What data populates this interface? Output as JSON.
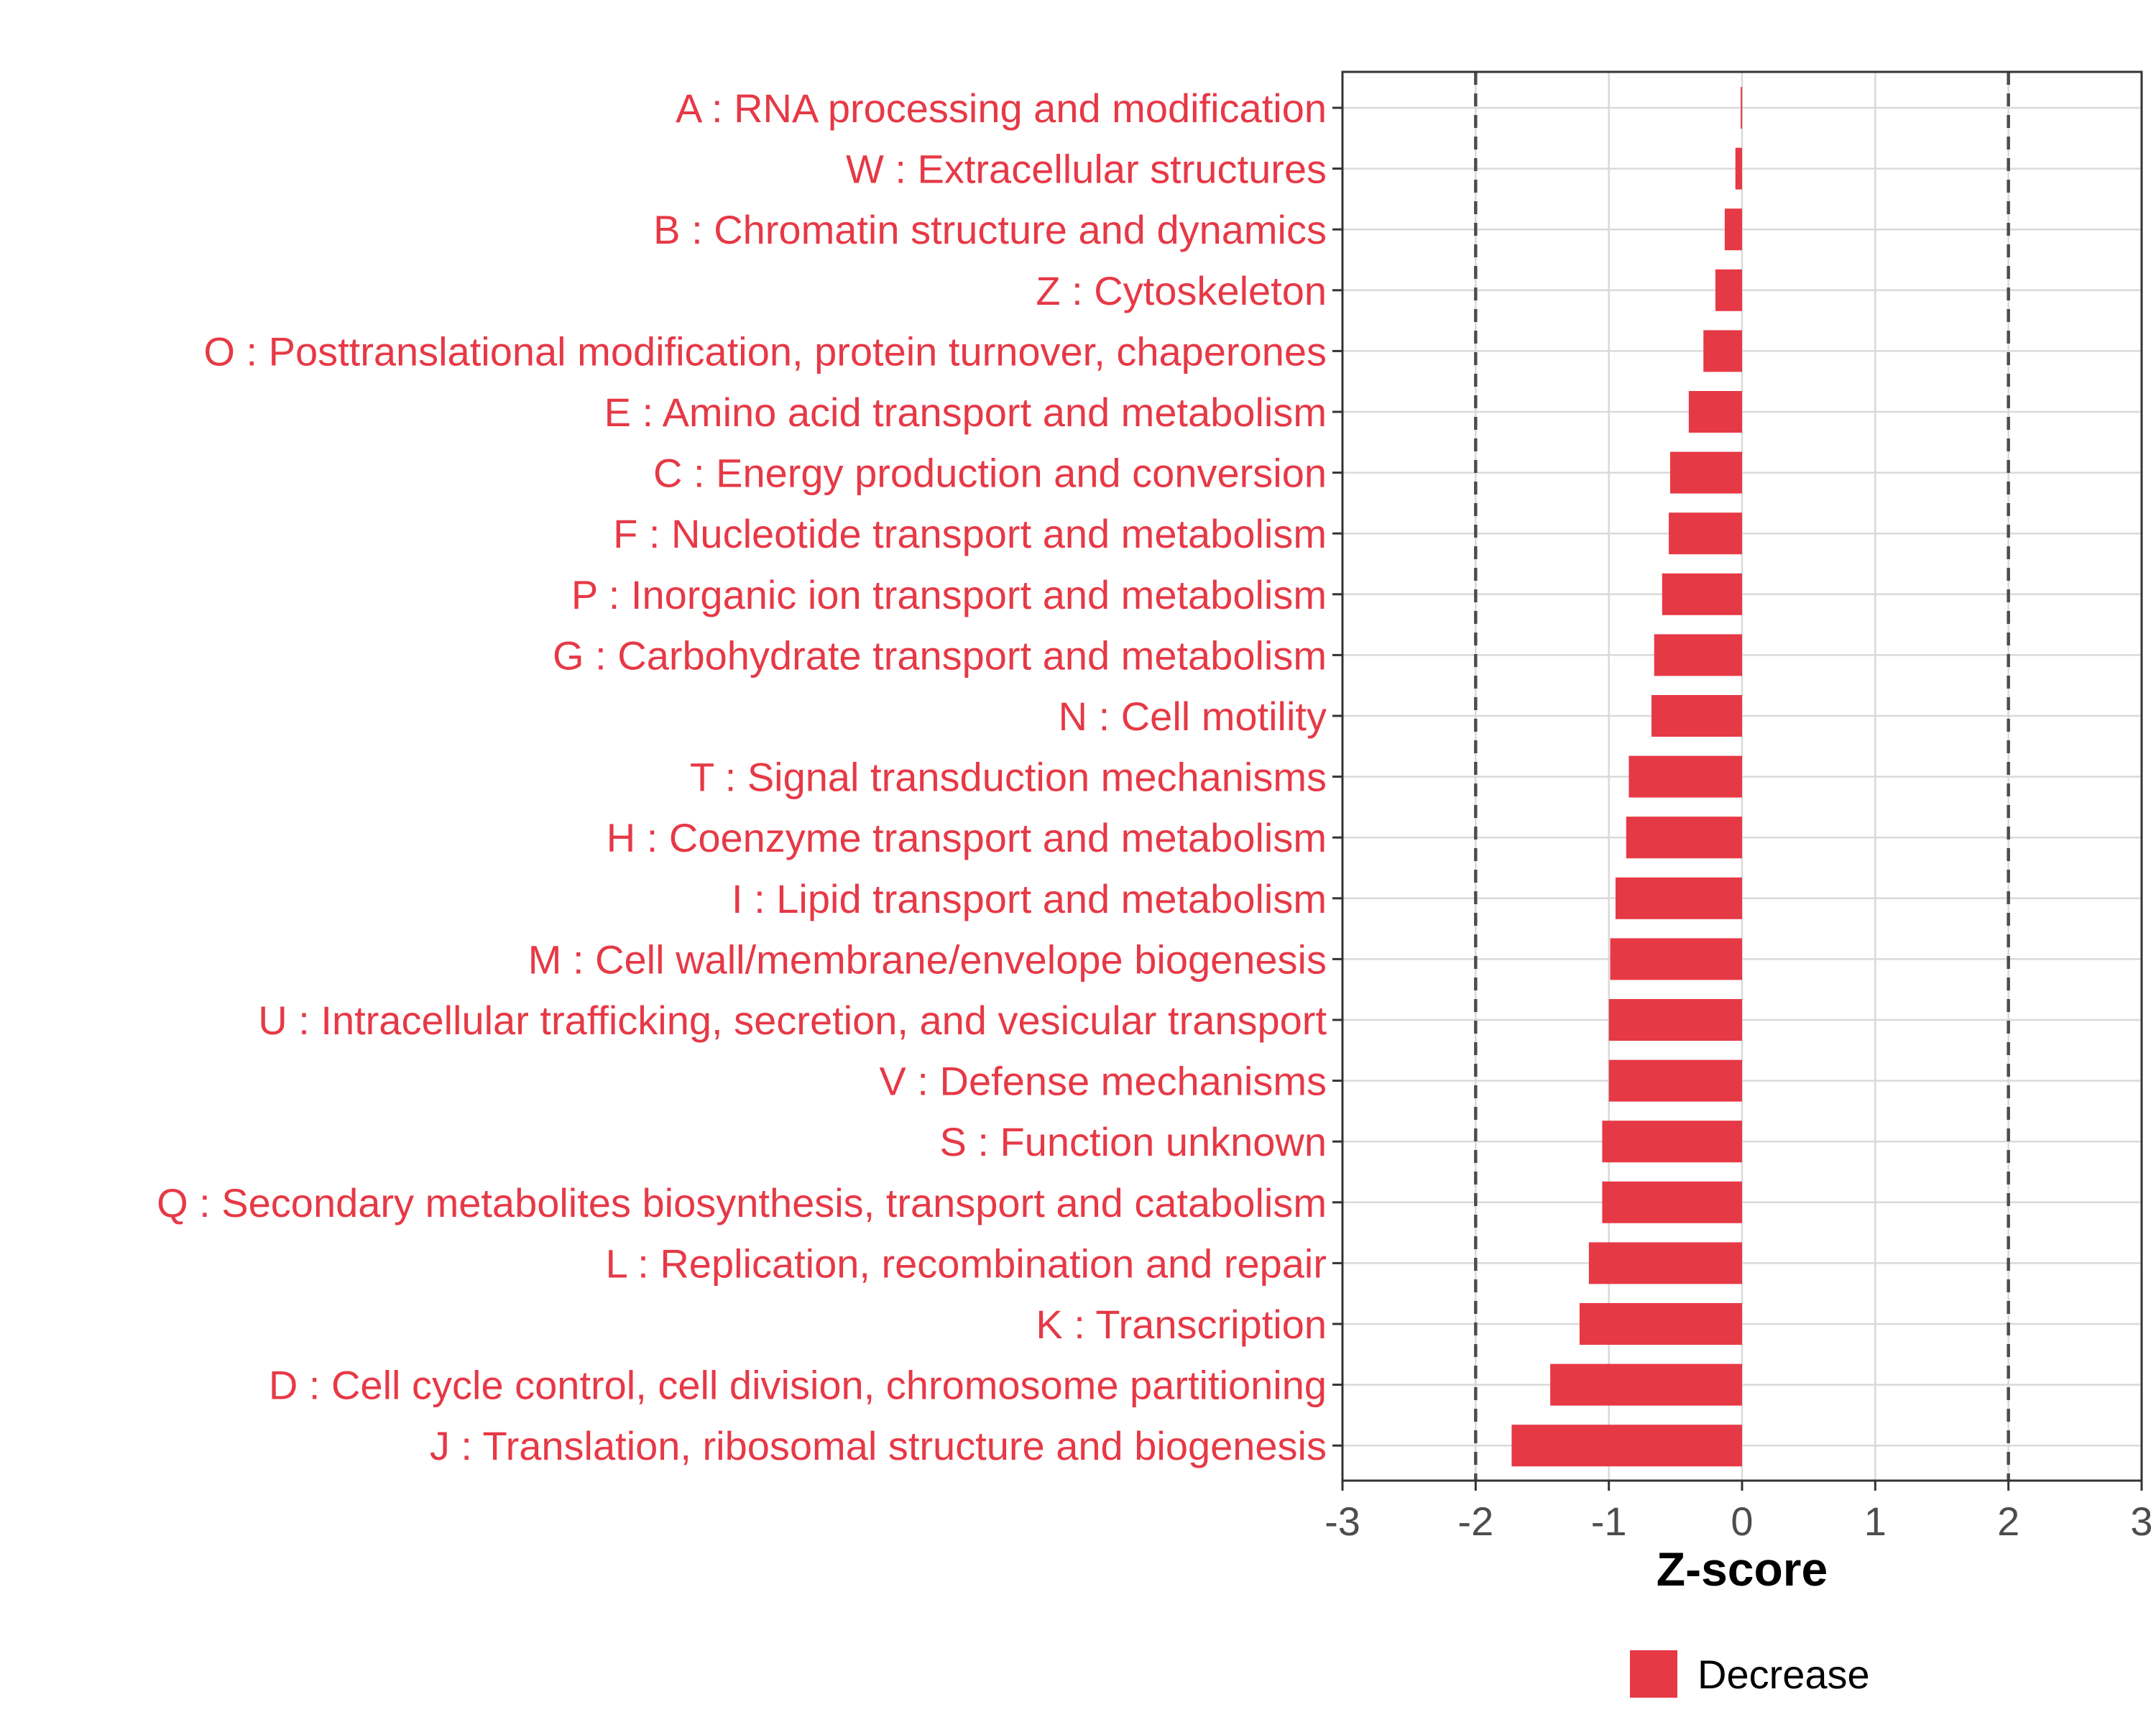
{
  "chart_data": {
    "type": "bar",
    "orientation": "horizontal",
    "categories": [
      "A : RNA processing and modification",
      "W : Extracellular structures",
      "B : Chromatin structure and dynamics",
      "Z : Cytoskeleton",
      "O : Posttranslational modification, protein turnover, chaperones",
      "E : Amino acid transport and metabolism",
      "C : Energy production and conversion",
      "F : Nucleotide transport and metabolism",
      "P : Inorganic ion transport and metabolism",
      "G : Carbohydrate transport and metabolism",
      "N : Cell motility",
      "T : Signal transduction mechanisms",
      "H : Coenzyme transport and metabolism",
      "I : Lipid transport and metabolism",
      "M : Cell wall/membrane/envelope biogenesis",
      "U : Intracellular trafficking, secretion, and vesicular transport",
      "V : Defense mechanisms",
      "S : Function unknown",
      "Q : Secondary metabolites biosynthesis, transport and catabolism",
      "L : Replication, recombination and repair",
      "K : Transcription",
      "D : Cell cycle control, cell division, chromosome partitioning",
      "J : Translation, ribosomal structure and biogenesis"
    ],
    "series": [
      {
        "name": "Decrease",
        "values": [
          -0.01,
          -0.05,
          -0.13,
          -0.2,
          -0.29,
          -0.4,
          -0.54,
          -0.55,
          -0.6,
          -0.66,
          -0.68,
          -0.85,
          -0.87,
          -0.95,
          -0.99,
          -1.0,
          -1.0,
          -1.05,
          -1.05,
          -1.15,
          -1.22,
          -1.44,
          -1.73
        ]
      }
    ],
    "xlabel": "Z-score",
    "ylabel": "",
    "xlim": [
      -3,
      3
    ],
    "x_ticks": [
      -3,
      -2,
      -1,
      0,
      1,
      2,
      3
    ],
    "x_tick_labels": [
      "-3",
      "-2",
      "-1",
      "0",
      "1",
      "2",
      "3"
    ],
    "reference_lines": [
      -2,
      2
    ],
    "reference_line_style": "dashed",
    "grid": true,
    "legend": {
      "placement": "bottom",
      "entries": [
        {
          "label": "Decrease",
          "color": "#e63946"
        }
      ]
    },
    "colors": {
      "bar": "#e63946",
      "label": "#e63946",
      "grid": "#d9d9d9",
      "axis": "#333333",
      "ref_line": "#4d4d4d"
    }
  }
}
